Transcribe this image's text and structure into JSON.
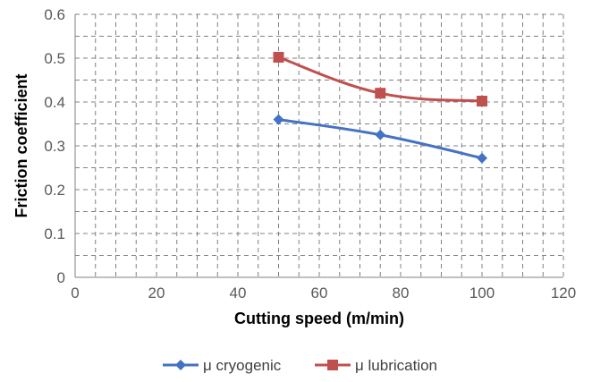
{
  "chart_data": {
    "type": "line",
    "xlabel": "Cutting speed (m/min)",
    "ylabel": "Friction coefficient",
    "xlim": [
      0,
      120
    ],
    "ylim": [
      0,
      0.6
    ],
    "x_ticks": [
      "0",
      "20",
      "40",
      "60",
      "80",
      "100",
      "120"
    ],
    "y_ticks": [
      "0",
      "0.1",
      "0.2",
      "0.3",
      "0.4",
      "0.5",
      "0.6"
    ],
    "grid": true,
    "legend_position": "bottom",
    "series": [
      {
        "name": "μ cryogenic",
        "marker": "diamond",
        "color": "#4472C4",
        "x": [
          50,
          75,
          100
        ],
        "y": [
          0.36,
          0.325,
          0.272
        ]
      },
      {
        "name": "μ lubrication",
        "marker": "square",
        "color": "#C0504D",
        "x": [
          50,
          75,
          100
        ],
        "y": [
          0.502,
          0.42,
          0.402
        ]
      }
    ]
  }
}
